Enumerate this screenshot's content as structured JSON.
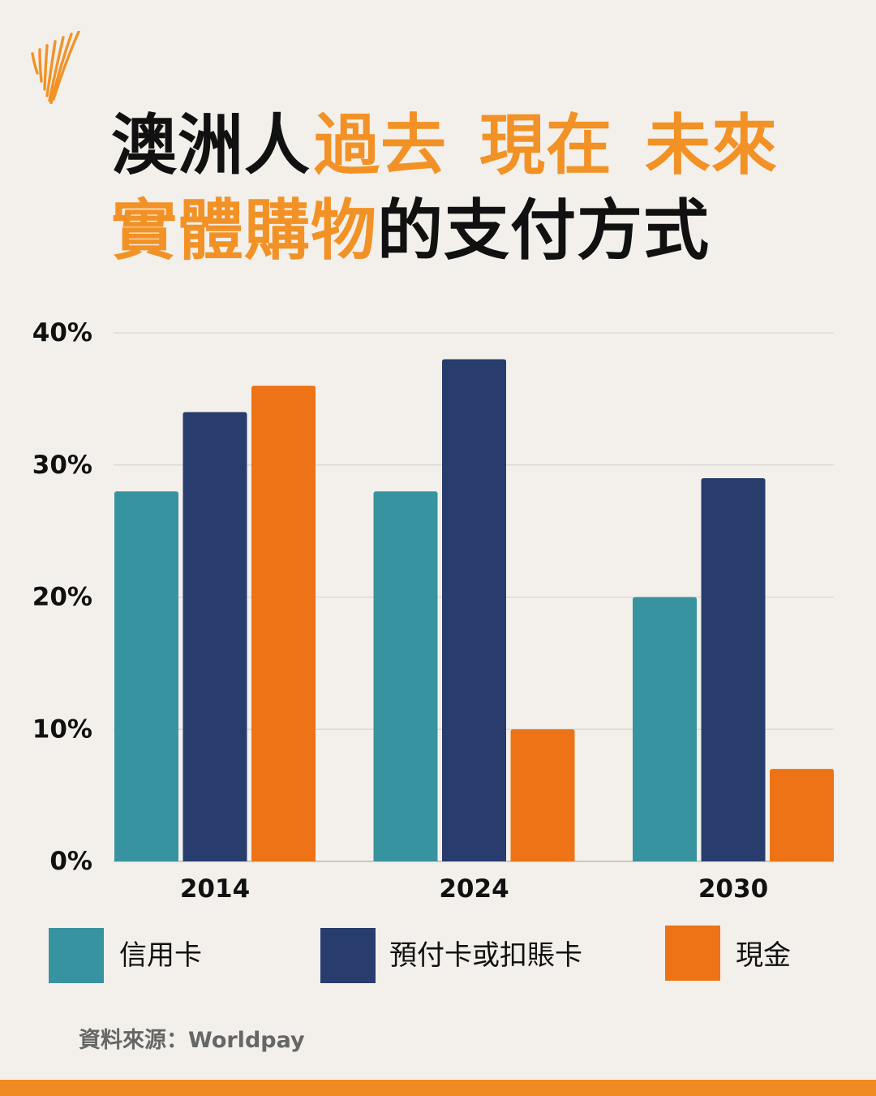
{
  "brand": {
    "logo_icon": "sbs-logo-icon"
  },
  "colors": {
    "background": "#F3F0EB",
    "title_dark": "#111111",
    "title_accent": "#F29226",
    "logo": "#F29226",
    "grid": "#D9D6D1",
    "axis": "#BDBAB5",
    "source_text": "#666666",
    "footer_bar": "#F08A22"
  },
  "chart_data": {
    "type": "bar",
    "title": {
      "line1": [
        {
          "text": "澳洲人",
          "highlight": false
        },
        {
          "text": "過去",
          "highlight": true
        },
        {
          "text": "現在",
          "highlight": true
        },
        {
          "text": "未來",
          "highlight": true
        }
      ],
      "line2": [
        {
          "text": "實體購物",
          "highlight": true
        },
        {
          "text": "的支付方式",
          "highlight": false
        }
      ]
    },
    "categories": [
      "2014",
      "2024",
      "2030"
    ],
    "series": [
      {
        "name": "信用卡",
        "color": "#3893A0",
        "values": [
          28,
          28,
          20
        ]
      },
      {
        "name": "預付卡或扣賬卡",
        "color": "#283C6E",
        "values": [
          34,
          38,
          29
        ]
      },
      {
        "name": "現金",
        "color": "#EE7316",
        "values": [
          36,
          10,
          7
        ]
      }
    ],
    "ylim": [
      0,
      40
    ],
    "y_ticks": [
      0,
      10,
      20,
      30,
      40
    ],
    "y_tick_labels": [
      "0%",
      "10%",
      "20%",
      "30%",
      "40%"
    ],
    "grid": true,
    "legend": "bottom"
  },
  "source": {
    "text": "資料來源：Worldpay"
  }
}
